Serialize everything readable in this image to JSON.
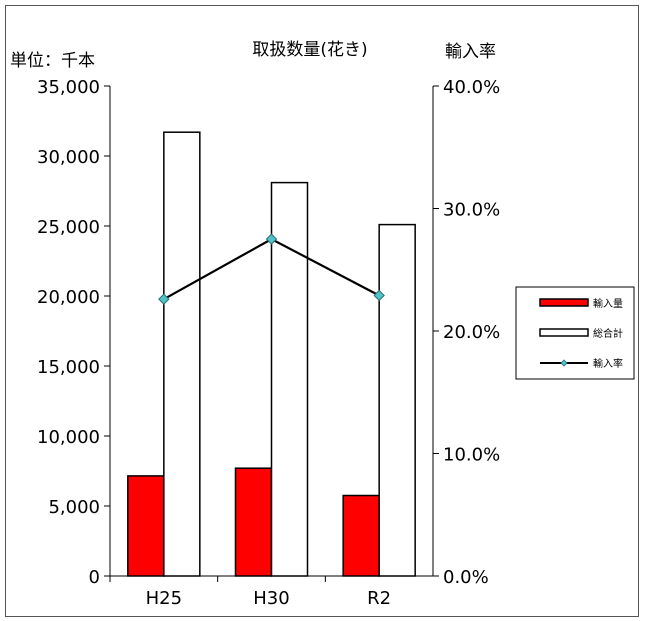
{
  "chart_data": {
    "type": "bar",
    "title": "取扱数量(花き)",
    "y_left_unit_label": "単位：千本",
    "y_right_label": "輸入率",
    "categories": [
      "H25",
      "H30",
      "R2"
    ],
    "series": [
      {
        "name": "輸入量",
        "kind": "bar",
        "axis": "left",
        "color": "#ff0000",
        "values": [
          7150,
          7700,
          5750
        ]
      },
      {
        "name": "総合計",
        "kind": "bar",
        "axis": "left",
        "color": "#ffffff",
        "values": [
          31700,
          28100,
          25100
        ]
      },
      {
        "name": "輸入率",
        "kind": "line",
        "axis": "right",
        "color": "#000000",
        "marker_color": "#4fc3c8",
        "values": [
          22.6,
          27.5,
          22.9
        ]
      }
    ],
    "y_left": {
      "min": 0,
      "max": 35000,
      "ticks": [
        "0",
        "5,000",
        "10,000",
        "15,000",
        "20,000",
        "25,000",
        "30,000",
        "35,000"
      ]
    },
    "y_right": {
      "min": 0,
      "max": 40,
      "ticks": [
        "0.0%",
        "10.0%",
        "20.0%",
        "30.0%",
        "40.0%"
      ]
    },
    "grid": false,
    "legend_placement": "right"
  }
}
